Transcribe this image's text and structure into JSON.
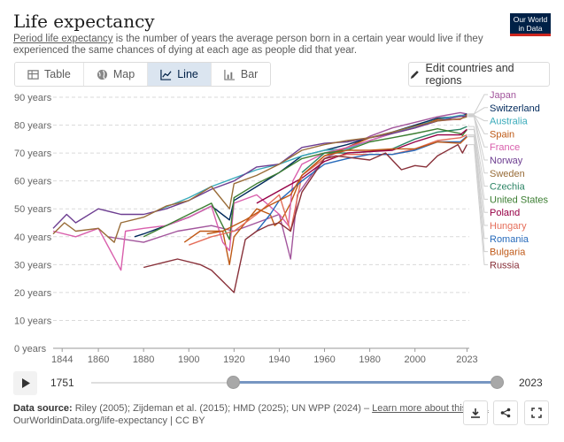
{
  "header": {
    "title": "Life expectancy",
    "subtitle_link": "Period life expectancy",
    "subtitle_rest": " is the number of years the average person born in a certain year would live if they experienced the same chances of dying at each age as people did that year.",
    "logo_line1": "Our World",
    "logo_line2": "in Data"
  },
  "tabs": [
    {
      "label": "Table",
      "icon": "table-icon"
    },
    {
      "label": "Map",
      "icon": "globe-icon"
    },
    {
      "label": "Line",
      "icon": "line-chart-icon",
      "active": true
    },
    {
      "label": "Bar",
      "icon": "bar-chart-icon"
    }
  ],
  "edit_button": {
    "label": "Edit countries and regions"
  },
  "timeline": {
    "start": "1751",
    "end": "2023",
    "start_fraction": 0.35,
    "end_fraction": 1.0
  },
  "footer": {
    "source_label": "Data source:",
    "source_text": "Riley (2005); Zijdeman et al. (2015); HMD (2025); UN WPP (2024) – ",
    "learn_more": "Learn more about this data",
    "url": "OurWorldinData.org/life-expectancy | CC BY"
  },
  "chart_data": {
    "type": "line",
    "x_ticks": [
      "1844",
      "1860",
      "1880",
      "1900",
      "1920",
      "1940",
      "1960",
      "1980",
      "2000",
      "2023"
    ],
    "y_ticks": [
      "0 years",
      "10 years",
      "20 years",
      "30 years",
      "40 years",
      "50 years",
      "60 years",
      "70 years",
      "80 years",
      "90 years"
    ],
    "xlim": [
      1840,
      2024
    ],
    "ylim": [
      0,
      90
    ],
    "grid": true,
    "legend_placement": "right",
    "series": [
      {
        "name": "Japan",
        "color": "#a2559c",
        "points": [
          [
            1864,
            40
          ],
          [
            1880,
            38
          ],
          [
            1895,
            42
          ],
          [
            1910,
            44
          ],
          [
            1920,
            42
          ],
          [
            1930,
            45
          ],
          [
            1940,
            48
          ],
          [
            1945,
            32
          ],
          [
            1948,
            55
          ],
          [
            1955,
            63
          ],
          [
            1960,
            68
          ],
          [
            1970,
            72
          ],
          [
            1980,
            76
          ],
          [
            1990,
            79
          ],
          [
            2000,
            81
          ],
          [
            2010,
            83
          ],
          [
            2020,
            84.5
          ],
          [
            2023,
            84
          ]
        ]
      },
      {
        "name": "Switzerland",
        "color": "#00295b",
        "points": [
          [
            1876,
            40
          ],
          [
            1880,
            41
          ],
          [
            1890,
            44
          ],
          [
            1900,
            47
          ],
          [
            1910,
            51
          ],
          [
            1918,
            46
          ],
          [
            1920,
            53
          ],
          [
            1930,
            58
          ],
          [
            1940,
            63
          ],
          [
            1950,
            69
          ],
          [
            1960,
            71
          ],
          [
            1970,
            73
          ],
          [
            1980,
            75.5
          ],
          [
            1990,
            77.5
          ],
          [
            2000,
            80
          ],
          [
            2010,
            82.5
          ],
          [
            2020,
            83.2
          ],
          [
            2023,
            84
          ]
        ]
      },
      {
        "name": "Australia",
        "color": "#38aaba",
        "points": [
          [
            1885,
            49
          ],
          [
            1900,
            54
          ],
          [
            1910,
            58
          ],
          [
            1920,
            61
          ],
          [
            1930,
            64
          ],
          [
            1940,
            66
          ],
          [
            1950,
            69
          ],
          [
            1960,
            71
          ],
          [
            1970,
            71.5
          ],
          [
            1980,
            74.5
          ],
          [
            1990,
            77
          ],
          [
            2000,
            79.5
          ],
          [
            2010,
            82
          ],
          [
            2020,
            83.5
          ],
          [
            2023,
            83.5
          ]
        ]
      },
      {
        "name": "Spain",
        "color": "#be5915",
        "points": [
          [
            1908,
            41
          ],
          [
            1915,
            42
          ],
          [
            1918,
            30
          ],
          [
            1920,
            40
          ],
          [
            1930,
            50
          ],
          [
            1936,
            48
          ],
          [
            1938,
            44
          ],
          [
            1941,
            46
          ],
          [
            1945,
            52
          ],
          [
            1950,
            62
          ],
          [
            1960,
            69
          ],
          [
            1970,
            72
          ],
          [
            1980,
            75.5
          ],
          [
            1990,
            77
          ],
          [
            2000,
            79
          ],
          [
            2010,
            82
          ],
          [
            2020,
            82
          ],
          [
            2023,
            83.8
          ]
        ]
      },
      {
        "name": "France",
        "color": "#d95fac",
        "points": [
          [
            1840,
            42
          ],
          [
            1850,
            40
          ],
          [
            1860,
            43
          ],
          [
            1870,
            28
          ],
          [
            1872,
            42
          ],
          [
            1880,
            43
          ],
          [
            1890,
            44
          ],
          [
            1900,
            47
          ],
          [
            1910,
            51
          ],
          [
            1915,
            38
          ],
          [
            1918,
            35
          ],
          [
            1920,
            52
          ],
          [
            1930,
            55
          ],
          [
            1940,
            48
          ],
          [
            1944,
            44
          ],
          [
            1946,
            60
          ],
          [
            1950,
            66
          ],
          [
            1960,
            70
          ],
          [
            1970,
            72
          ],
          [
            1980,
            74.5
          ],
          [
            1990,
            77
          ],
          [
            2000,
            79
          ],
          [
            2010,
            81.5
          ],
          [
            2020,
            82.2
          ],
          [
            2023,
            83.2
          ]
        ]
      },
      {
        "name": "Norway",
        "color": "#6d3e91",
        "points": [
          [
            1840,
            43
          ],
          [
            1846,
            48
          ],
          [
            1850,
            45
          ],
          [
            1860,
            50
          ],
          [
            1870,
            48
          ],
          [
            1880,
            48
          ],
          [
            1890,
            50
          ],
          [
            1900,
            53
          ],
          [
            1910,
            57
          ],
          [
            1920,
            60
          ],
          [
            1930,
            65
          ],
          [
            1940,
            66
          ],
          [
            1950,
            72
          ],
          [
            1960,
            73.5
          ],
          [
            1970,
            74
          ],
          [
            1980,
            75.5
          ],
          [
            1990,
            77
          ],
          [
            2000,
            79
          ],
          [
            2010,
            81.5
          ],
          [
            2020,
            83.2
          ],
          [
            2023,
            83.2
          ]
        ]
      },
      {
        "name": "Sweden",
        "color": "#996d39",
        "points": [
          [
            1840,
            41
          ],
          [
            1845,
            45
          ],
          [
            1850,
            42
          ],
          [
            1860,
            43
          ],
          [
            1867,
            38
          ],
          [
            1870,
            45
          ],
          [
            1880,
            47
          ],
          [
            1890,
            51
          ],
          [
            1900,
            53
          ],
          [
            1910,
            58
          ],
          [
            1918,
            50
          ],
          [
            1920,
            59
          ],
          [
            1930,
            62
          ],
          [
            1940,
            66
          ],
          [
            1950,
            71
          ],
          [
            1960,
            73
          ],
          [
            1970,
            74.5
          ],
          [
            1980,
            75.5
          ],
          [
            1990,
            77.5
          ],
          [
            2000,
            79.7
          ],
          [
            2010,
            81.5
          ],
          [
            2020,
            82.3
          ],
          [
            2023,
            83
          ]
        ]
      },
      {
        "name": "Czechia",
        "color": "#2c8465",
        "points": [
          [
            1950,
            63
          ],
          [
            1960,
            70
          ],
          [
            1970,
            70
          ],
          [
            1980,
            70.5
          ],
          [
            1990,
            71.5
          ],
          [
            2000,
            75
          ],
          [
            2010,
            77.5
          ],
          [
            2020,
            78.5
          ],
          [
            2023,
            79.5
          ]
        ]
      },
      {
        "name": "United States",
        "color": "#3c7e32",
        "points": [
          [
            1880,
            40
          ],
          [
            1890,
            44
          ],
          [
            1900,
            48
          ],
          [
            1910,
            52
          ],
          [
            1918,
            39
          ],
          [
            1920,
            54
          ],
          [
            1930,
            59
          ],
          [
            1940,
            63
          ],
          [
            1950,
            68
          ],
          [
            1960,
            70
          ],
          [
            1970,
            71
          ],
          [
            1980,
            74
          ],
          [
            1990,
            75.5
          ],
          [
            2000,
            77
          ],
          [
            2010,
            78.7
          ],
          [
            2020,
            77
          ],
          [
            2021,
            76.3
          ],
          [
            2023,
            78.4
          ]
        ]
      },
      {
        "name": "Poland",
        "color": "#970046",
        "points": [
          [
            1930,
            52
          ],
          [
            1950,
            61
          ],
          [
            1960,
            67
          ],
          [
            1970,
            70
          ],
          [
            1980,
            70.5
          ],
          [
            1990,
            71
          ],
          [
            2000,
            74
          ],
          [
            2010,
            76.5
          ],
          [
            2020,
            76.5
          ],
          [
            2023,
            78.5
          ]
        ]
      },
      {
        "name": "Hungary",
        "color": "#e56e5a",
        "points": [
          [
            1900,
            37
          ],
          [
            1910,
            40
          ],
          [
            1920,
            42
          ],
          [
            1930,
            48
          ],
          [
            1940,
            55
          ],
          [
            1945,
            42
          ],
          [
            1950,
            62
          ],
          [
            1960,
            68
          ],
          [
            1970,
            69.5
          ],
          [
            1980,
            69.5
          ],
          [
            1990,
            69.5
          ],
          [
            2000,
            71.5
          ],
          [
            2010,
            74.5
          ],
          [
            2020,
            75.5
          ],
          [
            2023,
            76.5
          ]
        ]
      },
      {
        "name": "Romania",
        "color": "#286bbb",
        "points": [
          [
            1930,
            42
          ],
          [
            1936,
            48
          ],
          [
            1940,
            53
          ],
          [
            1950,
            60
          ],
          [
            1960,
            66
          ],
          [
            1970,
            68
          ],
          [
            1980,
            69.5
          ],
          [
            1990,
            69.5
          ],
          [
            2000,
            71
          ],
          [
            2010,
            74
          ],
          [
            2020,
            74
          ],
          [
            2023,
            76
          ]
        ]
      },
      {
        "name": "Bulgaria",
        "color": "#c05917",
        "points": [
          [
            1898,
            38
          ],
          [
            1905,
            42
          ],
          [
            1915,
            42
          ],
          [
            1925,
            46
          ],
          [
            1935,
            51
          ],
          [
            1945,
            55
          ],
          [
            1950,
            62
          ],
          [
            1960,
            69
          ],
          [
            1970,
            71
          ],
          [
            1980,
            71
          ],
          [
            1990,
            71.5
          ],
          [
            2000,
            71.5
          ],
          [
            2010,
            74
          ],
          [
            2020,
            73.5
          ],
          [
            2023,
            75.8
          ]
        ]
      },
      {
        "name": "Russia",
        "color": "#883039",
        "points": [
          [
            1880,
            29
          ],
          [
            1890,
            31
          ],
          [
            1895,
            32
          ],
          [
            1905,
            30
          ],
          [
            1910,
            28
          ],
          [
            1915,
            24
          ],
          [
            1920,
            20
          ],
          [
            1925,
            39
          ],
          [
            1930,
            42
          ],
          [
            1935,
            44
          ],
          [
            1940,
            45
          ],
          [
            1945,
            42
          ],
          [
            1950,
            56
          ],
          [
            1960,
            68
          ],
          [
            1965,
            69
          ],
          [
            1970,
            68.5
          ],
          [
            1980,
            67.5
          ],
          [
            1987,
            70
          ],
          [
            1994,
            64
          ],
          [
            2000,
            65.5
          ],
          [
            2005,
            65
          ],
          [
            2010,
            69
          ],
          [
            2019,
            73
          ],
          [
            2021,
            70
          ],
          [
            2023,
            73
          ]
        ]
      }
    ]
  }
}
